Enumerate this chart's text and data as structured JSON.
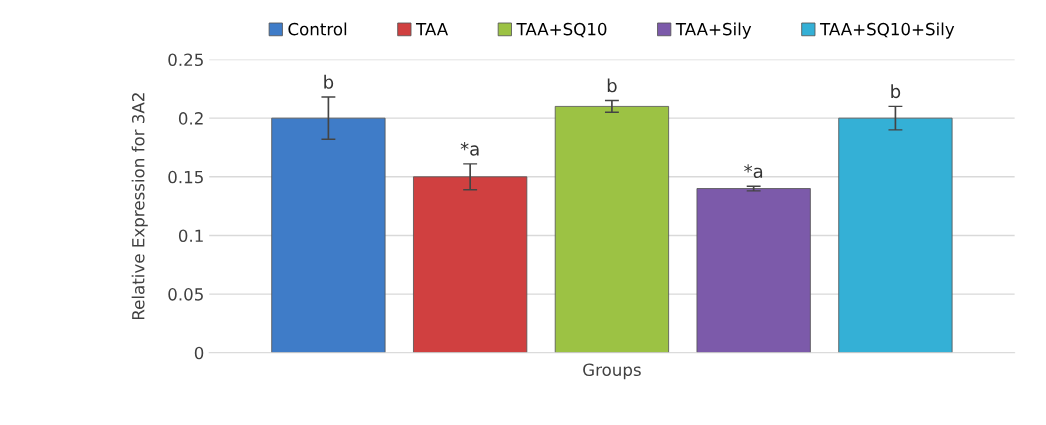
{
  "chart_data": {
    "type": "bar",
    "xlabel": "Groups",
    "ylabel": "Relative Expression for 3A2",
    "categories": [
      null
    ],
    "series": [
      {
        "name": "Control",
        "color": "#3f7cc8",
        "values": [
          0.2
        ],
        "errors": [
          0.018
        ],
        "value_labels": [
          "b"
        ]
      },
      {
        "name": "TAA",
        "color": "#d04040",
        "values": [
          0.15
        ],
        "errors": [
          0.011
        ],
        "value_labels": [
          "*a"
        ]
      },
      {
        "name": "TAA+SQ10",
        "color": "#9cc244",
        "values": [
          0.21
        ],
        "errors": [
          0.005
        ],
        "value_labels": [
          "b"
        ]
      },
      {
        "name": "TAA+Sily",
        "color": "#7c5aaa",
        "values": [
          0.14
        ],
        "errors": [
          0.002
        ],
        "value_labels": [
          "*a"
        ]
      },
      {
        "name": "TAA+SQ10+Sily",
        "color": "#34b0d6",
        "values": [
          0.2
        ],
        "errors": [
          0.01
        ],
        "value_labels": [
          "b"
        ]
      }
    ],
    "ylim": [
      0,
      0.25
    ],
    "yticks": [
      0,
      0.05,
      0.1,
      0.15,
      0.2,
      0.25
    ],
    "grid": "y",
    "legend": "top"
  }
}
